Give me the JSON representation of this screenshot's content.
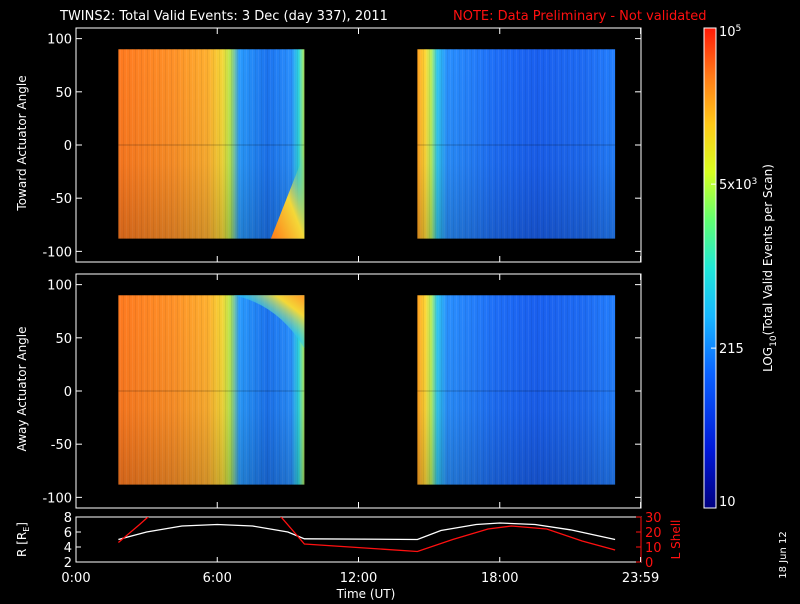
{
  "title": {
    "main": "TWINS2: Total Valid Events:  3 Dec (day 337), 2011",
    "note": "NOTE: Data Preliminary - Not validated"
  },
  "colors": {
    "background": "#000000",
    "axes": "#ffffff",
    "note": "#ff1010",
    "r_curve": "#ffffff",
    "lshell_curve": "#ff1010"
  },
  "datestamp": "18 Jun 12",
  "chart_data": [
    {
      "type": "heatmap",
      "panel": "toward",
      "ylabel": "Toward Actuator Angle",
      "ylim": [
        -110,
        110
      ],
      "yticks": [
        100,
        50,
        0,
        -50,
        -100
      ],
      "xlim_hours": [
        0,
        24
      ],
      "data_blocks": [
        {
          "t_start": 1.8,
          "t_end": 9.7,
          "angle_min": -88,
          "angle_max": 90
        },
        {
          "t_start": 14.5,
          "t_end": 22.9,
          "angle_min": -88,
          "angle_max": 90
        }
      ],
      "grid": false
    },
    {
      "type": "heatmap",
      "panel": "away",
      "ylabel": "Away Actuator Angle",
      "ylim": [
        -110,
        110
      ],
      "yticks": [
        100,
        50,
        0,
        -50,
        -100
      ],
      "xlim_hours": [
        0,
        24
      ],
      "data_blocks": [
        {
          "t_start": 1.8,
          "t_end": 9.7,
          "angle_min": -88,
          "angle_max": 90
        },
        {
          "t_start": 14.5,
          "t_end": 22.9,
          "angle_min": -88,
          "angle_max": 90
        }
      ],
      "grid": false
    },
    {
      "type": "colorbar",
      "label": "LOG10(Total Valid Events per Scan)",
      "scale": "log",
      "range": [
        10,
        100000
      ],
      "ticks": [
        {
          "value": 100000,
          "label": "10^5"
        },
        {
          "value": 5000,
          "label": "5x10^3"
        },
        {
          "value": 215,
          "label": "215"
        },
        {
          "value": 10,
          "label": "10"
        }
      ]
    },
    {
      "type": "line",
      "panel": "orbit",
      "xlabel": "Time (UT)",
      "xticks": [
        "0:00",
        "6:00",
        "12:00",
        "18:00",
        "23:59"
      ],
      "xtick_hours": [
        0,
        6,
        12,
        18,
        23.983
      ],
      "left_axis": {
        "label": "R [RE]",
        "ylim": [
          2,
          8
        ],
        "ticks": [
          2,
          4,
          6,
          8
        ]
      },
      "right_axis": {
        "label": "L Shell",
        "ylim": [
          0,
          30
        ],
        "ticks": [
          0,
          10,
          20,
          30
        ]
      },
      "series": [
        {
          "name": "R [RE]",
          "axis": "left",
          "x": [
            1.8,
            3.0,
            4.5,
            6.0,
            7.5,
            9.0,
            9.7,
            14.5,
            15.5,
            17.0,
            18.0,
            19.5,
            21.0,
            22.9
          ],
          "y": [
            5.0,
            6.0,
            6.8,
            7.0,
            6.8,
            6.0,
            5.1,
            5.0,
            6.2,
            7.0,
            7.2,
            7.0,
            6.3,
            5.0
          ]
        },
        {
          "name": "L Shell",
          "axis": "right",
          "x": [
            1.8,
            2.7,
            3.2,
            8.6,
            9.7,
            14.5,
            16.0,
            17.5,
            18.5,
            20.0,
            21.5,
            22.9
          ],
          "y": [
            13,
            25,
            32,
            32,
            12,
            7,
            15,
            22,
            24,
            22,
            14,
            8
          ]
        }
      ]
    }
  ]
}
